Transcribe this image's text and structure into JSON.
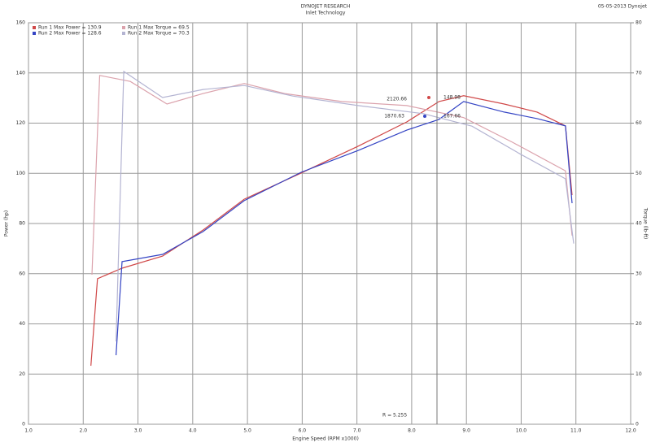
{
  "chart_data": {
    "type": "line",
    "title": "DYNOJET RESEARCH",
    "subtitle": "Inlet Technology",
    "corner_text": "05-05-2013 Dynojet",
    "x_label": "Engine Speed (RPM x1000)",
    "y_label": "Power (hp)",
    "y2_label": "Torque (lb-ft)",
    "annotations": [
      "2120.66",
      "148.98",
      "1870.63",
      "167.66",
      "R = 5.255"
    ],
    "xlim": [
      1,
      12
    ],
    "xticks": [
      {
        "value": 1,
        "label": "1.0"
      },
      {
        "value": 2,
        "label": "2.0"
      },
      {
        "value": 3,
        "label": "3.0"
      },
      {
        "value": 4,
        "label": "4.0"
      },
      {
        "value": 5,
        "label": "5.0"
      },
      {
        "value": 6,
        "label": "6.0"
      },
      {
        "value": 7,
        "label": "7.0"
      },
      {
        "value": 8,
        "label": "8.0"
      },
      {
        "value": 9,
        "label": "9.0"
      },
      {
        "value": 10,
        "label": "10.0"
      },
      {
        "value": 11,
        "label": "11.0"
      },
      {
        "value": 12,
        "label": "12.0"
      }
    ],
    "ylim": [
      0,
      160
    ],
    "yticks": [
      0,
      20,
      40,
      60,
      80,
      100,
      120,
      140,
      160
    ],
    "y2lim": [
      0,
      80
    ],
    "y2ticks": [
      0,
      10,
      20,
      30,
      40,
      50,
      60,
      70,
      80
    ],
    "grid": true,
    "series": [
      {
        "name": "Run 1 Max Power = 130.9",
        "color": "#d04848",
        "x": [
          2.14,
          2.26,
          2.71,
          3.45,
          4.19,
          4.94,
          5.98,
          7.02,
          7.91,
          8.5,
          8.95,
          9.69,
          10.29,
          10.81,
          10.93
        ],
        "values": [
          23.3,
          58.0,
          62.2,
          67.0,
          77.4,
          89.7,
          100.1,
          110.8,
          120.5,
          128.6,
          130.9,
          127.6,
          124.4,
          118.9,
          91.3
        ]
      },
      {
        "name": "Run 2 Max Power = 128.6",
        "color": "#3444c4",
        "x": [
          2.6,
          2.71,
          3.45,
          4.19,
          4.94,
          5.98,
          7.02,
          7.91,
          8.5,
          8.95,
          9.69,
          10.29,
          10.81,
          10.93
        ],
        "values": [
          27.5,
          64.8,
          67.7,
          76.8,
          89.1,
          100.4,
          109.1,
          117.2,
          121.5,
          128.6,
          124.4,
          121.8,
          118.9,
          88.1
        ]
      },
      {
        "name": "Run 1 Max Torque = 69.5",
        "color": "#dba2ac",
        "axis": "y2",
        "x": [
          2.16,
          2.3,
          2.86,
          3.53,
          4.19,
          4.94,
          5.68,
          6.72,
          7.91,
          8.95,
          9.84,
          10.81,
          10.93
        ],
        "values": [
          29.8,
          69.5,
          68.3,
          63.8,
          65.9,
          67.9,
          65.9,
          64.3,
          63.5,
          61.1,
          56.2,
          50.5,
          37.6
        ]
      },
      {
        "name": "Run 2 Max Torque = 70.3",
        "color": "#b4b4d2",
        "axis": "y2",
        "x": [
          2.6,
          2.74,
          3.45,
          4.19,
          4.94,
          5.83,
          7.02,
          8.21,
          9.1,
          9.99,
          10.81,
          10.96
        ],
        "values": [
          16.5,
          70.3,
          65.1,
          66.7,
          67.5,
          65.4,
          63.5,
          61.9,
          59.4,
          53.8,
          48.9,
          36.0
        ]
      }
    ]
  }
}
